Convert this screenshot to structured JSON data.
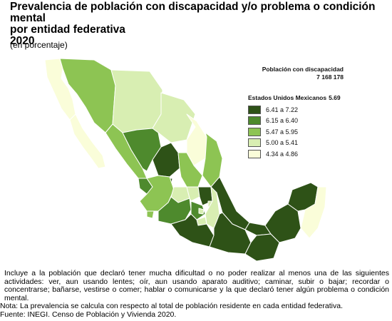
{
  "title": {
    "line1": "Prevalencia de población con discapacidad y/o problema o condición mental",
    "line2": "por entidad federativa",
    "line3": "2020"
  },
  "subtitle": "(en porcentaje)",
  "population": {
    "label": "Población con discapacidad",
    "value": "7 168 178"
  },
  "legend": {
    "title": "Estados Unidos Mexicanos",
    "average": "5.69",
    "classes": [
      {
        "range": "6.41 a 7.22",
        "color": "#2e5217"
      },
      {
        "range": "6.15 a 6.40",
        "color": "#4e8a2d"
      },
      {
        "range": "5.47 a 5.95",
        "color": "#8dc453"
      },
      {
        "range": "5.00 a 5.41",
        "color": "#d8eeb2"
      },
      {
        "range": "4.34 a 4.86",
        "color": "#fafdd9"
      }
    ]
  },
  "footnotes": {
    "note_main": "Incluye a la población que declaró tener mucha dificultad o no poder realizar al menos una de las siguientes actividades: ver, aun usando lentes; oír, aun usando aparato auditivo; caminar, subir o bajar; recordar o concentrarse; bañarse, vestirse o comer; hablar o comunicarse y la que declaró tener algún problema o condición mental.",
    "nota": "Nota: La prevalencia se calcula con respecto al total de población residente en cada entidad federativa.",
    "fuente": "Fuente: INEGI. Censo de Población y Vivienda 2020."
  }
}
